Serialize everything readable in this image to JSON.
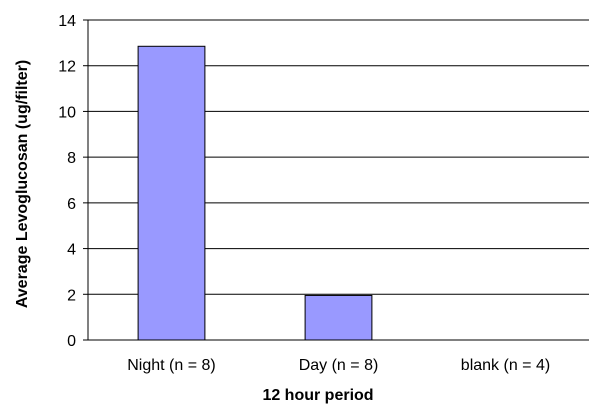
{
  "chart_data": {
    "type": "bar",
    "title": "",
    "xlabel": "12 hour period",
    "ylabel": "Average Levoglucosan (ug/filter)",
    "categories": [
      "Night (n = 8)",
      "Day (n = 8)",
      "blank (n = 4)"
    ],
    "values": [
      12.85,
      1.95,
      0
    ],
    "ylim": [
      0,
      14
    ],
    "yticks": [
      0,
      2,
      4,
      6,
      8,
      10,
      12,
      14
    ],
    "grid": true,
    "legend": "none",
    "bar_color": "#9999ff"
  }
}
